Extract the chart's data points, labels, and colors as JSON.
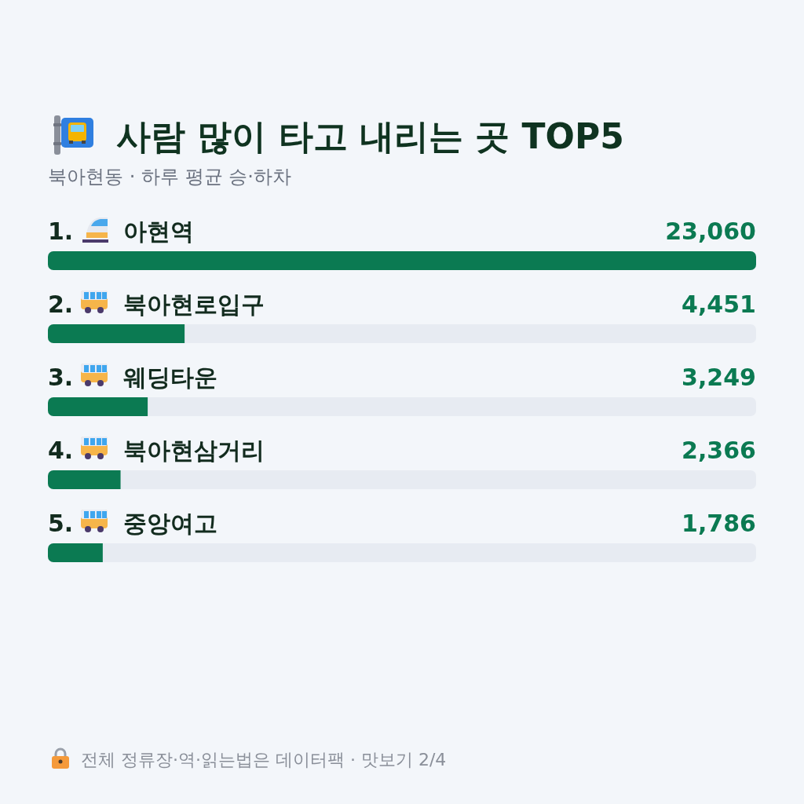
{
  "chart_data": {
    "type": "bar",
    "orientation": "horizontal",
    "title": "사람 많이 타고 내리는 곳 TOP5",
    "subtitle": "북아현동 · 하루 평균 승·하차",
    "categories": [
      "1. 아현역",
      "2. 북아현로입구",
      "3. 웨딩타운",
      "4. 북아현삼거리",
      "5. 중앙여고"
    ],
    "values": [
      23060,
      4451,
      3249,
      2366,
      1786
    ],
    "value_labels": [
      "23,060",
      "4,451",
      "3,249",
      "2,366",
      "1,786"
    ],
    "color": "#0b7a52",
    "annotations": [
      "전체 정류장·역·읽는법은 데이터팩 · 맛보기 2/4"
    ]
  }
}
